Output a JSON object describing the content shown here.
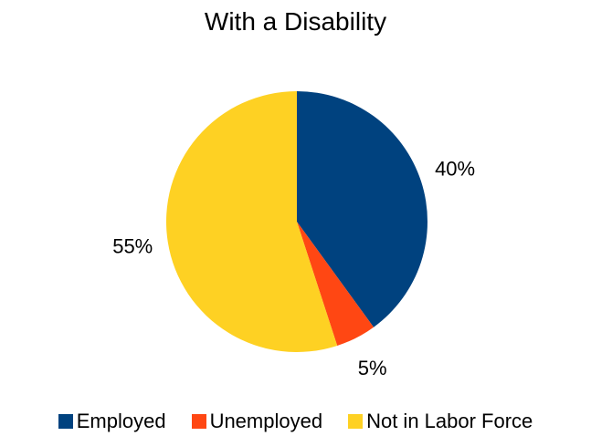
{
  "chart_data": {
    "type": "pie",
    "title": "With a Disability",
    "categories": [
      "Employed",
      "Unemployed",
      "Not in Labor Force"
    ],
    "values": [
      40,
      5,
      55
    ],
    "data_labels": [
      "40%",
      "5%",
      "55%"
    ],
    "colors": [
      "#00427f",
      "#ff4713",
      "#fed123"
    ],
    "legend_position": "bottom",
    "start_angle": "12 o'clock",
    "direction": "clockwise"
  }
}
